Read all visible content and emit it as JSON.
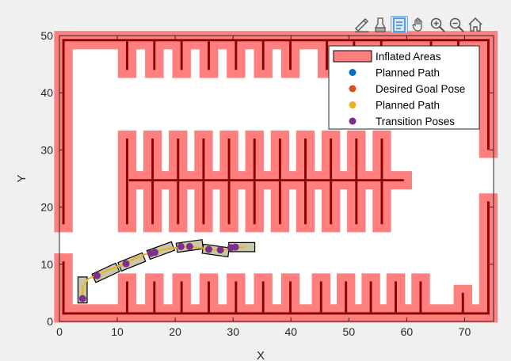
{
  "toolbar": {
    "buttons": [
      {
        "name": "edit-icon"
      },
      {
        "name": "brush-icon"
      },
      {
        "name": "datatip-icon"
      },
      {
        "name": "pan-icon"
      },
      {
        "name": "zoom-in-icon"
      },
      {
        "name": "zoom-out-icon"
      },
      {
        "name": "home-icon"
      }
    ],
    "active": "datatip-icon"
  },
  "chart_data": {
    "type": "scatter",
    "xlabel": "X",
    "ylabel": "Y",
    "xlim": [
      0,
      75
    ],
    "ylim": [
      0,
      50
    ],
    "xticks": [
      "0",
      "10",
      "20",
      "30",
      "40",
      "50",
      "60",
      "70"
    ],
    "yticks": [
      "0",
      "10",
      "20",
      "30",
      "40",
      "50"
    ],
    "colors": {
      "inflated": "#ff7f7f",
      "obstacle": "#8b0000",
      "planned_path_marker": "#0072bd",
      "goal": "#d95319",
      "path_line": "#edb120",
      "transition": "#7e2f8e",
      "vehicle_fill": "#c8c8a8"
    },
    "legend": {
      "position": "top-right",
      "entries": [
        {
          "label": "Inflated Areas",
          "kind": "patch",
          "color": "#ff7f7f"
        },
        {
          "label": "Planned Path",
          "kind": "dot",
          "color": "#0072bd"
        },
        {
          "label": "Desired Goal Pose",
          "kind": "dot",
          "color": "#d95319"
        },
        {
          "label": "Planned Path",
          "kind": "dot",
          "color": "#edb120"
        },
        {
          "label": "Transition Poses",
          "kind": "dot",
          "color": "#7e2f8e"
        }
      ]
    },
    "path": [
      [
        4,
        4
      ],
      [
        4,
        6
      ],
      [
        5,
        7.5
      ],
      [
        6.5,
        8
      ],
      [
        8.5,
        9
      ],
      [
        11,
        10
      ],
      [
        13,
        11
      ],
      [
        15.5,
        12
      ],
      [
        18,
        12.6
      ],
      [
        21,
        13
      ],
      [
        23.5,
        13
      ],
      [
        26,
        12.6
      ],
      [
        28,
        12.4
      ],
      [
        30,
        12.8
      ],
      [
        32,
        13
      ]
    ],
    "transition_poses": [
      [
        4,
        4
      ],
      [
        6.5,
        8
      ],
      [
        11.5,
        10.1
      ],
      [
        15.8,
        11.9
      ],
      [
        16.5,
        12.1
      ],
      [
        21,
        13.1
      ],
      [
        22.5,
        13.1
      ],
      [
        25.8,
        12.6
      ],
      [
        27.8,
        12.5
      ],
      [
        29.6,
        12.9
      ],
      [
        30.4,
        13
      ]
    ],
    "vehicles": [
      {
        "x": 4,
        "y": 5.5,
        "theta": 90
      },
      {
        "x": 8,
        "y": 8.5,
        "theta": 25
      },
      {
        "x": 12.5,
        "y": 10.4,
        "theta": 22
      },
      {
        "x": 17.5,
        "y": 12.4,
        "theta": 20
      },
      {
        "x": 22.5,
        "y": 13.2,
        "theta": 8
      },
      {
        "x": 27,
        "y": 12.4,
        "theta": -8
      },
      {
        "x": 31.5,
        "y": 13,
        "theta": 0
      }
    ]
  }
}
